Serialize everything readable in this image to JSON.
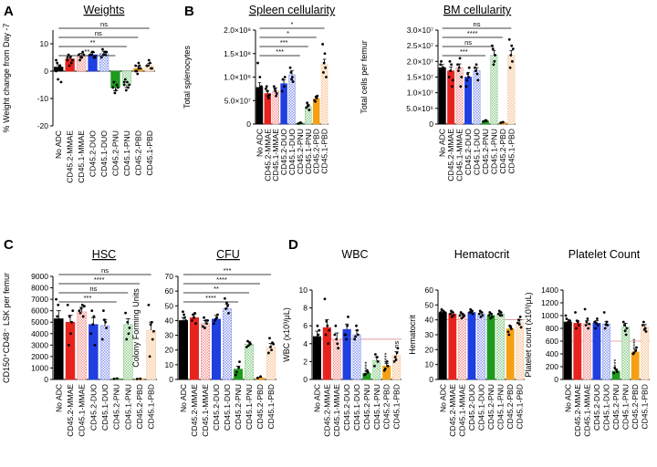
{
  "figure": {
    "panel_letters": [
      "A",
      "B",
      "C",
      "D"
    ],
    "categories": [
      "No ADC",
      "CD45.2-MMAE",
      "CD45.1-MMAE",
      "CD45.2-DUO",
      "CD45.1-DUO",
      "CD45.2-PNU",
      "CD45.1-PNU",
      "CD45.2-PBD",
      "CD45.1-PBD"
    ],
    "colors": [
      "#000000",
      "#e8231d",
      "#f49a94",
      "#1f3fe0",
      "#8c9cf0",
      "#1e9a1e",
      "#8fcf8f",
      "#f5a014",
      "#f8caa0"
    ],
    "patterns": [
      "solid",
      "solid",
      "check",
      "solid",
      "check",
      "solid",
      "check",
      "solid",
      "check"
    ]
  },
  "chart_data": [
    {
      "id": "weights",
      "panel": "A",
      "type": "bar",
      "title": "Weights",
      "title_underlined": true,
      "ylabel": "% Weight change from Day -7",
      "ylim": [
        -20,
        15
      ],
      "yticks": [
        -20,
        -10,
        0,
        10
      ],
      "categories": [
        "No ADC",
        "CD45.2-MMAE",
        "CD45.1-MMAE",
        "CD45.2-DUO",
        "CD45.1-DUO",
        "CD45.2-PNU",
        "CD45.1-PNU",
        "CD45.2-PBD",
        "CD45.1-PBD"
      ],
      "values": [
        1.5,
        4.5,
        5.5,
        6,
        6.5,
        -6,
        -5,
        1,
        2
      ],
      "errors": [
        0.8,
        1,
        1,
        0.8,
        0.8,
        1.2,
        1,
        0.8,
        0.8
      ],
      "points": [
        [
          0,
          1,
          2,
          3,
          -3,
          -4,
          4,
          1,
          2
        ],
        [
          4,
          5,
          3,
          6,
          2,
          4,
          5
        ],
        [
          6,
          5,
          7,
          4,
          5,
          6
        ],
        [
          6,
          7,
          5,
          6,
          7,
          5
        ],
        [
          5,
          7,
          6,
          8,
          6,
          7
        ],
        [
          -6,
          -7,
          -5,
          -4,
          -8,
          -6
        ],
        [
          -5,
          -4,
          -6,
          -3,
          -7,
          -5,
          -4
        ],
        [
          0,
          1,
          2,
          0,
          -1,
          1,
          2,
          3
        ],
        [
          2,
          3,
          1,
          2,
          4,
          1,
          2
        ]
      ],
      "significance": [
        {
          "to": "CD45.1-PBD",
          "label": "ns"
        },
        {
          "to": "CD45.2-PBD",
          "label": "ns"
        },
        {
          "to": "CD45.1-PNU",
          "label": "**"
        },
        {
          "to": "CD45.2-PNU",
          "label": "**"
        }
      ]
    },
    {
      "id": "spleen",
      "panel": "B",
      "type": "bar",
      "title": "Spleen cellularity",
      "title_underlined": true,
      "ylabel": "Total splenocytes",
      "ylim": [
        0,
        200000000
      ],
      "scale": 100000000,
      "yticks": [
        0,
        50000000,
        100000000,
        150000000,
        200000000
      ],
      "yticklabels": [
        "0",
        "5.0×10⁷",
        "1.0×10⁸",
        "1.5×10⁸",
        "2.0×10⁸"
      ],
      "categories": [
        "No ADC",
        "CD45.2-MMAE",
        "CD45.1-MMAE",
        "CD45.2-DUO",
        "CD45.1-DUO",
        "CD45.2-PNU",
        "CD45.1-PNU",
        "CD45.2-PBD",
        "CD45.1-PBD"
      ],
      "values": [
        78000000,
        65000000,
        70000000,
        86000000,
        105000000,
        2000000,
        37000000,
        54000000,
        128000000
      ],
      "errors": [
        10000000,
        6000000,
        7000000,
        8000000,
        9000000,
        1000000,
        4000000,
        5000000,
        10000000
      ],
      "points": [
        [
          130000000,
          100000000,
          65000000,
          60000000,
          55000000,
          80000000
        ],
        [
          75000000,
          60000000,
          55000000,
          80000000,
          70000000,
          62000000
        ],
        [
          80000000,
          60000000,
          65000000,
          75000000,
          70000000
        ],
        [
          70000000,
          80000000,
          100000000,
          95000000
        ],
        [
          120000000,
          100000000,
          90000000,
          110000000,
          95000000
        ],
        [
          1000000,
          3000000,
          2000000
        ],
        [
          35000000,
          40000000,
          30000000,
          45000000,
          38000000
        ],
        [
          50000000,
          55000000,
          60000000,
          48000000,
          58000000
        ],
        [
          170000000,
          150000000,
          120000000,
          110000000,
          130000000,
          100000000
        ]
      ],
      "significance": [
        {
          "to": "CD45.1-PBD",
          "label": "*"
        },
        {
          "to": "CD45.2-PBD",
          "label": "*"
        },
        {
          "to": "CD45.1-PNU",
          "label": "***"
        },
        {
          "to": "CD45.2-PNU",
          "label": "***"
        }
      ]
    },
    {
      "id": "bm",
      "panel": "B",
      "type": "bar",
      "title": "BM cellularity",
      "title_underlined": true,
      "ylabel": "Total cells per femur",
      "ylim": [
        0,
        30000000
      ],
      "scale": 10000000,
      "yticks": [
        0,
        5000000,
        10000000,
        15000000,
        20000000,
        25000000,
        30000000
      ],
      "yticklabels": [
        "0",
        "5.0×10⁶",
        "1.0×10⁷",
        "1.5×10⁷",
        "2.0×10⁷",
        "2.5×10⁷",
        "3.0×10⁷"
      ],
      "categories": [
        "No ADC",
        "CD45.2-MMAE",
        "CD45.1-MMAE",
        "CD45.2-DUO",
        "CD45.1-DUO",
        "CD45.2-PNU",
        "CD45.1-PNU",
        "CD45.2-PBD",
        "CD45.1-PBD"
      ],
      "values": [
        18000000,
        17000000,
        18000000,
        15000000,
        17000000,
        1000000,
        22000000,
        500000,
        22000000
      ],
      "errors": [
        1000000,
        1200000,
        1200000,
        1500000,
        1000000,
        200000,
        1500000,
        200000,
        1500000
      ],
      "points": [
        [
          19000000,
          17000000,
          18000000,
          20000000,
          16000000,
          17500000
        ],
        [
          15000000,
          19000000,
          12000000,
          20000000,
          17000000,
          14000000
        ],
        [
          19000000,
          21000000,
          12000000,
          17000000,
          18000000,
          15000000
        ],
        [
          12000000,
          15000000,
          18000000,
          14000000,
          16000000
        ],
        [
          18000000,
          16000000,
          14000000,
          17000000,
          19000000
        ],
        [
          800000,
          1200000,
          1000000
        ],
        [
          25000000,
          20000000,
          22000000,
          24000000,
          19000000
        ],
        [
          400000,
          600000
        ],
        [
          27000000,
          25000000,
          20000000,
          18000000,
          22000000,
          24000000
        ]
      ],
      "significance": [
        {
          "to": "CD45.1-PBD",
          "label": "ns"
        },
        {
          "to": "CD45.2-PBD",
          "label": "****"
        },
        {
          "to": "CD45.1-PNU",
          "label": "ns"
        },
        {
          "to": "CD45.2-PNU",
          "label": "***"
        }
      ]
    },
    {
      "id": "hsc",
      "panel": "C",
      "type": "bar",
      "title": "HSC",
      "title_underlined": true,
      "ylabel": "CD150⁺CD48⁻ LSK per femur",
      "ylim": [
        0,
        9000
      ],
      "yticks": [
        0,
        1000,
        2000,
        3000,
        4000,
        5000,
        6000,
        7000,
        8000,
        9000
      ],
      "categories": [
        "No ADC",
        "CD45.2-MMAE",
        "CD45.1-MMAE",
        "CD45.2-DUO",
        "CD45.1-DUO",
        "CD45.2-PNU",
        "CD45.1-PNU",
        "CD45.2-PBD",
        "CD45.1-PBD"
      ],
      "values": [
        5300,
        5000,
        5900,
        4800,
        4700,
        50,
        4800,
        50,
        4300
      ],
      "errors": [
        700,
        600,
        400,
        600,
        500,
        30,
        500,
        30,
        700
      ],
      "points": [
        [
          7000,
          4500,
          3000,
          5500,
          6500,
          4000
        ],
        [
          6500,
          4000,
          5000,
          3000,
          5500,
          6000
        ],
        [
          6000,
          6500,
          5500,
          5800,
          6200,
          6400
        ],
        [
          4000,
          5500,
          3000,
          6000,
          4800
        ],
        [
          3500,
          5000,
          4500,
          6000,
          5200
        ],
        [
          50,
          80
        ],
        [
          5800,
          4000,
          4500,
          3500,
          5000
        ],
        [
          40,
          60
        ],
        [
          6500,
          5000,
          3500,
          2000,
          4800,
          4200
        ]
      ],
      "significance": [
        {
          "to": "CD45.1-PBD",
          "label": "ns"
        },
        {
          "to": "CD45.2-PBD",
          "label": "****"
        },
        {
          "to": "CD45.1-PNU",
          "label": "ns"
        },
        {
          "to": "CD45.2-PNU",
          "label": "***"
        }
      ]
    },
    {
      "id": "cfu",
      "panel": "C",
      "type": "bar",
      "title": "CFU",
      "title_underlined": true,
      "ylabel": "Colony Forming Units",
      "ylim": [
        0,
        70
      ],
      "yticks": [
        0,
        10,
        20,
        30,
        40,
        50,
        60,
        70
      ],
      "categories": [
        "No ADC",
        "CD45.2-MMAE",
        "CD45.1-MMAE",
        "CD45.2-DUO",
        "CD45.1-DUO",
        "CD45.2-PNU",
        "CD45.1-PNU",
        "CD45.2-PBD",
        "CD45.1-PBD"
      ],
      "values": [
        40,
        42,
        38,
        41,
        48,
        7,
        24,
        1,
        22
      ],
      "errors": [
        2,
        2.5,
        2,
        2.5,
        3,
        2,
        1.5,
        0.5,
        2.5
      ],
      "points": [
        [
          38,
          44,
          42,
          36,
          46,
          40
        ],
        [
          40,
          45,
          38,
          44,
          42
        ],
        [
          36,
          40,
          38,
          42,
          35,
          40
        ],
        [
          38,
          42,
          44,
          40,
          41
        ],
        [
          55,
          50,
          45,
          48,
          52
        ],
        [
          3,
          8,
          12,
          5
        ],
        [
          22,
          25,
          24,
          26,
          23
        ],
        [
          1,
          2
        ],
        [
          18,
          20,
          25,
          28,
          22,
          24
        ]
      ],
      "significance": [
        {
          "to": "CD45.1-PBD",
          "label": "***"
        },
        {
          "to": "CD45.2-PBD",
          "label": "****"
        },
        {
          "to": "CD45.1-PNU",
          "label": "**"
        },
        {
          "to": "CD45.2-PNU",
          "label": "****"
        }
      ]
    },
    {
      "id": "wbc",
      "panel": "D",
      "type": "bar",
      "title": "WBC",
      "title_underlined": false,
      "ylabel": "WBC (x10³/μL)",
      "ylim": [
        0,
        10
      ],
      "yticks": [
        0,
        2,
        4,
        6,
        8,
        10
      ],
      "categories": [
        "No ADC",
        "CD45.2-MMAE",
        "CD45.1-MMAE",
        "CD45.2-DUO",
        "CD45.1-DUO",
        "CD45.2-PNU",
        "CD45.1-PNU",
        "CD45.2-PBD",
        "CD45.1-PBD"
      ],
      "values": [
        4.8,
        5.8,
        4.5,
        5.6,
        5,
        0.7,
        2.1,
        1.5,
        2.7
      ],
      "errors": [
        0.6,
        0.9,
        0.7,
        0.6,
        0.5,
        0.2,
        0.4,
        0.3,
        0.4
      ],
      "points": [
        [
          4,
          6,
          5,
          4.5,
          4,
          5.5
        ],
        [
          9,
          6,
          4,
          5,
          6.5,
          5.5
        ],
        [
          5,
          4,
          3.5,
          6,
          4.5
        ],
        [
          5,
          6,
          7,
          5,
          4.5
        ],
        [
          4.5,
          5.5,
          5,
          4.8,
          6
        ],
        [
          0.5,
          1,
          0.8,
          0.6
        ],
        [
          1.5,
          2.5,
          2,
          2.8
        ],
        [
          1,
          2,
          1.5,
          1.2
        ],
        [
          2,
          3,
          3.5,
          2.5,
          2.2
        ]
      ],
      "significance_marks": [
        {
          "over": "CD45.2-PNU",
          "label": "****"
        },
        {
          "over": "CD45.2-PBD",
          "label": "****"
        },
        {
          "over": "CD45.1-PBD",
          "label": "ns"
        }
      ],
      "reference_line": 4.5
    },
    {
      "id": "hct",
      "panel": "D",
      "type": "bar",
      "title": "Hematocrit",
      "title_underlined": false,
      "ylabel": "Hematocrit",
      "ylim": [
        0,
        60
      ],
      "yticks": [
        0,
        10,
        20,
        30,
        40,
        50,
        60
      ],
      "categories": [
        "No ADC",
        "CD45.2-MMAE",
        "CD45.1-MMAE",
        "CD45.2-DUO",
        "CD45.1-DUO",
        "CD45.2-PNU",
        "CD45.1-PNU",
        "CD45.2-PBD",
        "CD45.1-PBD"
      ],
      "values": [
        45,
        44,
        43,
        45,
        44,
        43,
        44,
        34,
        38
      ],
      "errors": [
        1,
        1,
        1.2,
        1,
        1,
        1,
        1,
        2,
        2
      ],
      "points": [
        [
          45,
          46,
          44,
          47,
          43,
          45
        ],
        [
          44,
          45,
          43,
          46,
          42
        ],
        [
          43,
          44,
          42,
          45,
          41,
          43
        ],
        [
          45,
          46,
          44,
          47,
          45
        ],
        [
          44,
          45,
          43,
          46,
          42
        ],
        [
          43,
          44,
          42,
          45,
          41
        ],
        [
          44,
          45,
          43,
          46,
          43
        ],
        [
          32,
          35,
          34,
          30,
          36
        ],
        [
          38,
          42,
          35,
          40,
          37
        ]
      ],
      "reference_line": 40
    },
    {
      "id": "plt",
      "panel": "D",
      "type": "bar",
      "title": "Platelet Count",
      "title_underlined": false,
      "ylabel": "Platelet count (x10³/μL)",
      "ylim": [
        0,
        1400
      ],
      "yticks": [
        0,
        200,
        400,
        600,
        800,
        1000,
        1200,
        1400
      ],
      "categories": [
        "No ADC",
        "CD45.2-MMAE",
        "CD45.1-MMAE",
        "CD45.2-DUO",
        "CD45.1-DUO",
        "CD45.2-PNU",
        "CD45.1-PNU",
        "CD45.2-PBD",
        "CD45.1-PBD"
      ],
      "values": [
        900,
        880,
        870,
        880,
        870,
        130,
        820,
        430,
        820
      ],
      "errors": [
        40,
        40,
        50,
        40,
        40,
        30,
        60,
        40,
        40
      ],
      "points": [
        [
          1000,
          900,
          850,
          950,
          880,
          920
        ],
        [
          1050,
          900,
          850,
          800,
          920
        ],
        [
          1100,
          950,
          800,
          850,
          900,
          870
        ],
        [
          900,
          950,
          850,
          800,
          880
        ],
        [
          1050,
          900,
          850,
          800,
          860
        ],
        [
          100,
          150,
          120,
          180
        ],
        [
          900,
          700,
          800,
          850,
          760
        ],
        [
          400,
          450,
          500,
          420
        ],
        [
          850,
          800,
          750,
          900,
          780
        ]
      ],
      "significance_marks": [
        {
          "over": "CD45.2-PNU",
          "label": "****"
        },
        {
          "over": "CD45.2-PBD",
          "label": "****"
        }
      ],
      "reference_line": 600
    }
  ]
}
